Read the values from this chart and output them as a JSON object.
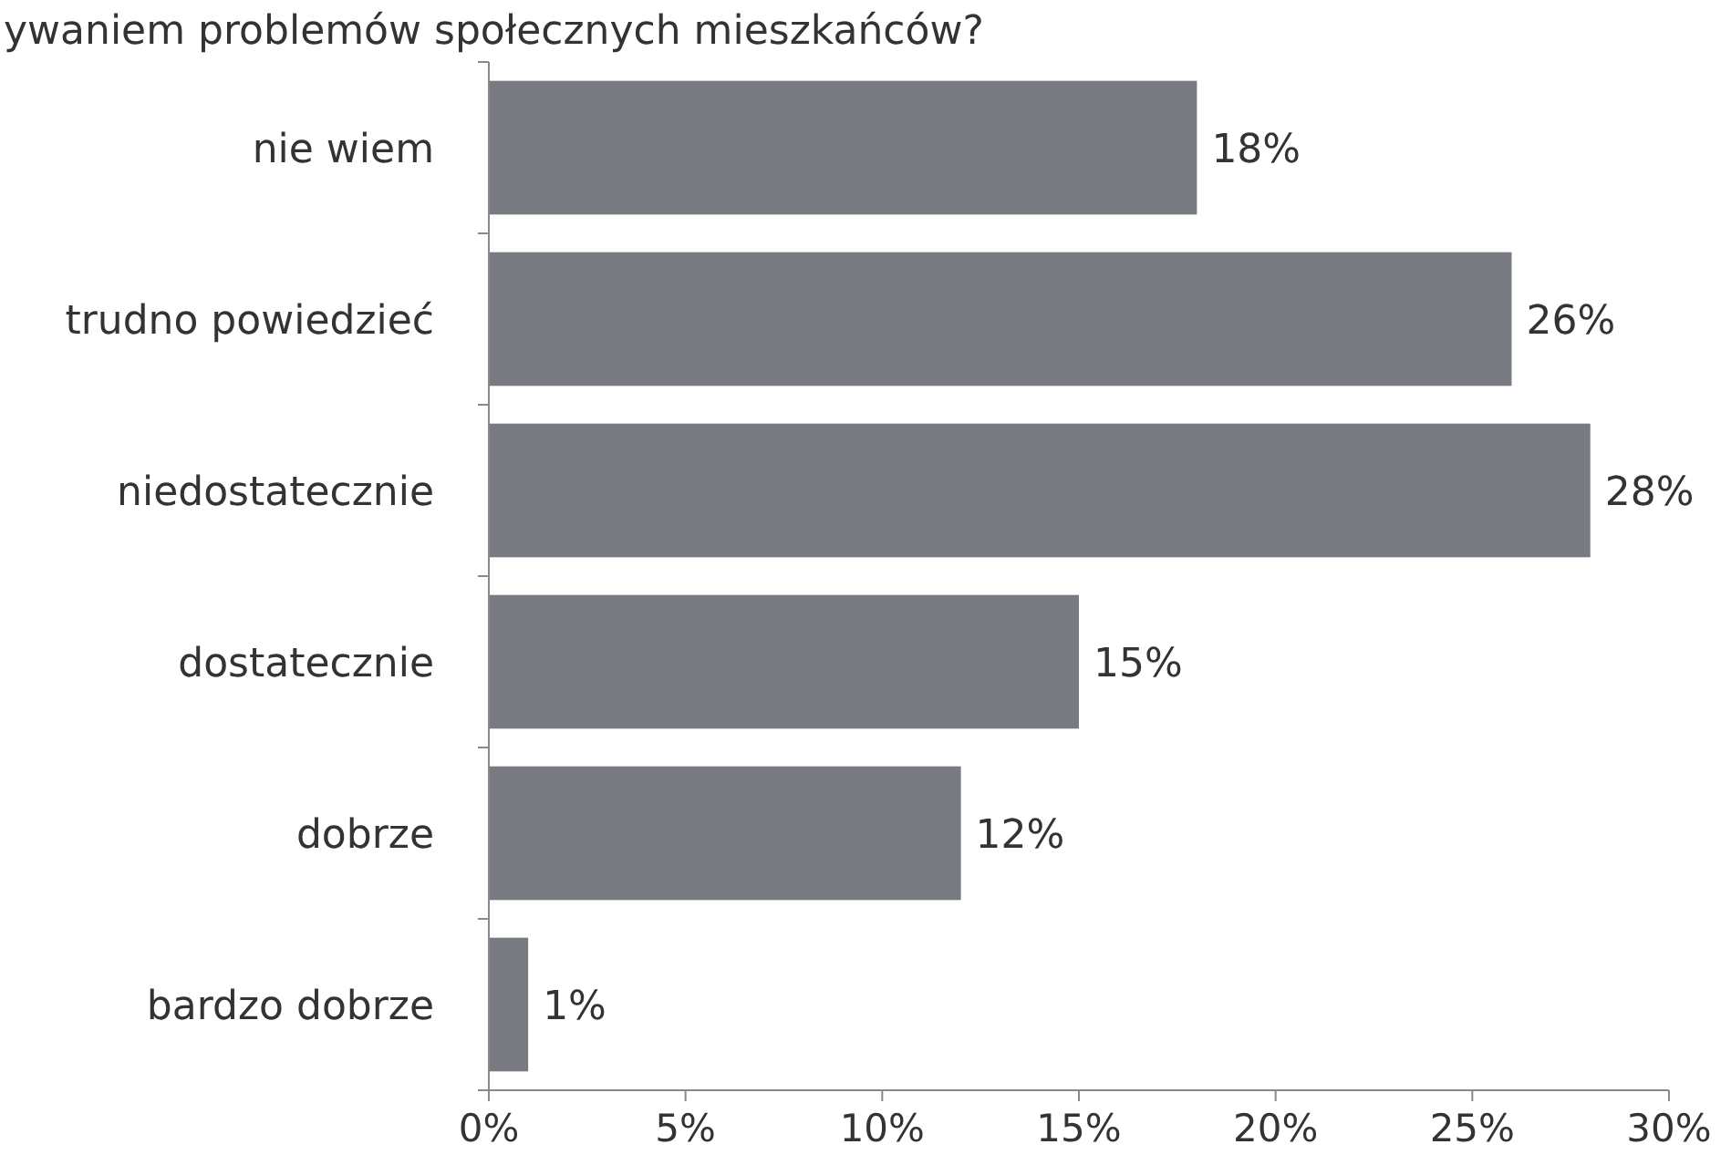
{
  "chart_data": {
    "type": "bar",
    "orientation": "horizontal",
    "title": "ywaniem problemów społecznych mieszkańców?",
    "categories": [
      "nie wiem",
      "trudno powiedzieć",
      "niedostatecznie",
      "dostatecznie",
      "dobrze",
      "bardzo dobrze"
    ],
    "values": [
      18,
      26,
      28,
      15,
      12,
      1
    ],
    "color": "#787b82",
    "data_labels": true,
    "value_labels": [
      "18%",
      "26%",
      "28%",
      "15%",
      "12%",
      "1%"
    ],
    "xlim": [
      0,
      30
    ],
    "xticks": [
      {
        "value": 0,
        "label": "0%"
      },
      {
        "value": 5,
        "label": "5%"
      },
      {
        "value": 10,
        "label": "10%"
      },
      {
        "value": 15,
        "label": "15%"
      },
      {
        "value": 20,
        "label": "20%"
      },
      {
        "value": 25,
        "label": "25%"
      },
      {
        "value": 30,
        "label": "30%"
      }
    ],
    "grid": false
  }
}
